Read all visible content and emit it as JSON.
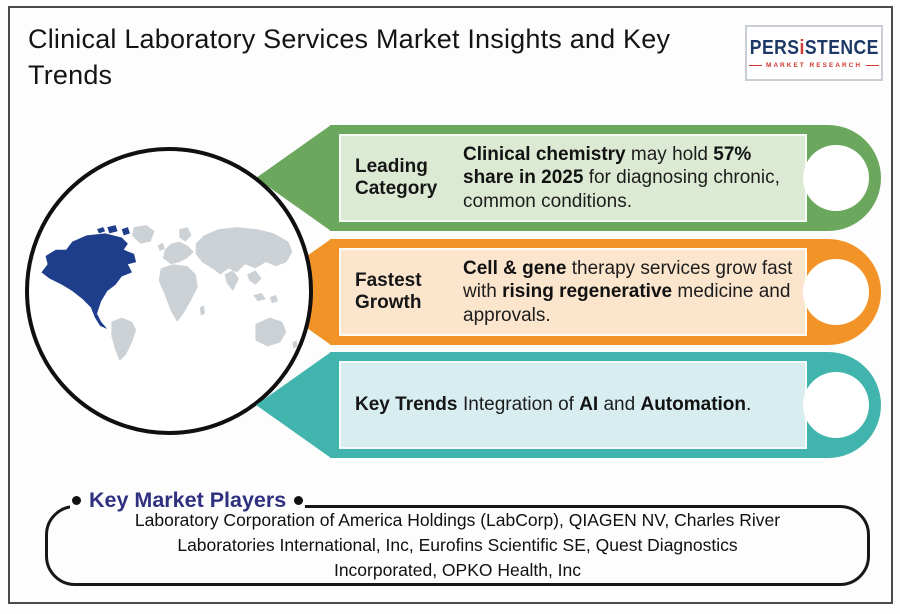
{
  "page": {
    "frame_color": "#4a4a4a",
    "background": "#fdfdfd"
  },
  "header": {
    "title": "Clinical Laboratory Services Market Insights and Key Trends",
    "logo": {
      "brand_prefix": "PERS",
      "brand_i": "i",
      "brand_suffix": "STENCE",
      "tagline": "MARKET RESEARCH",
      "brand_color": "#1c3966",
      "accent_color": "#cf3832"
    }
  },
  "map": {
    "highlighted_region": "North America",
    "highlight_color": "#1e3e8c",
    "land_color": "#ccd1d6",
    "circle_border_color": "#101010"
  },
  "insights": [
    {
      "label": "Leading Category",
      "outer_color": "#6ba75c",
      "inner_color": "#dcead4",
      "segments": [
        {
          "text": "Clinical chemistry",
          "bold": true
        },
        {
          "text": " may hold ",
          "bold": false
        },
        {
          "text": "57% share in 2025",
          "bold": true
        },
        {
          "text": " for diagnosing chronic, common conditions.",
          "bold": false
        }
      ]
    },
    {
      "label": "Fastest Growth",
      "outer_color": "#f29327",
      "inner_color": "#fbe5cd",
      "segments": [
        {
          "text": "Cell & gene",
          "bold": true
        },
        {
          "text": " therapy services grow fast with ",
          "bold": false
        },
        {
          "text": "rising regenerative",
          "bold": true
        },
        {
          "text": " medicine and approvals.",
          "bold": false
        }
      ]
    },
    {
      "label": "Key Trends",
      "outer_color": "#41b4ae",
      "inner_color": "#d7edf0",
      "segments": [
        {
          "text": "Integration of ",
          "bold": false
        },
        {
          "text": "AI",
          "bold": true
        },
        {
          "text": " and ",
          "bold": false
        },
        {
          "text": "Automation",
          "bold": true
        },
        {
          "text": ".",
          "bold": false
        }
      ]
    }
  ],
  "key_players": {
    "title": "Key Market Players",
    "title_color": "#2f3180",
    "companies_lines": [
      "Laboratory Corporation of America Holdings (LabCorp), QIAGEN NV, Charles River",
      "Laboratories International, Inc, Eurofins Scientific SE, Quest Diagnostics",
      "Incorporated, OPKO Health, Inc"
    ]
  }
}
